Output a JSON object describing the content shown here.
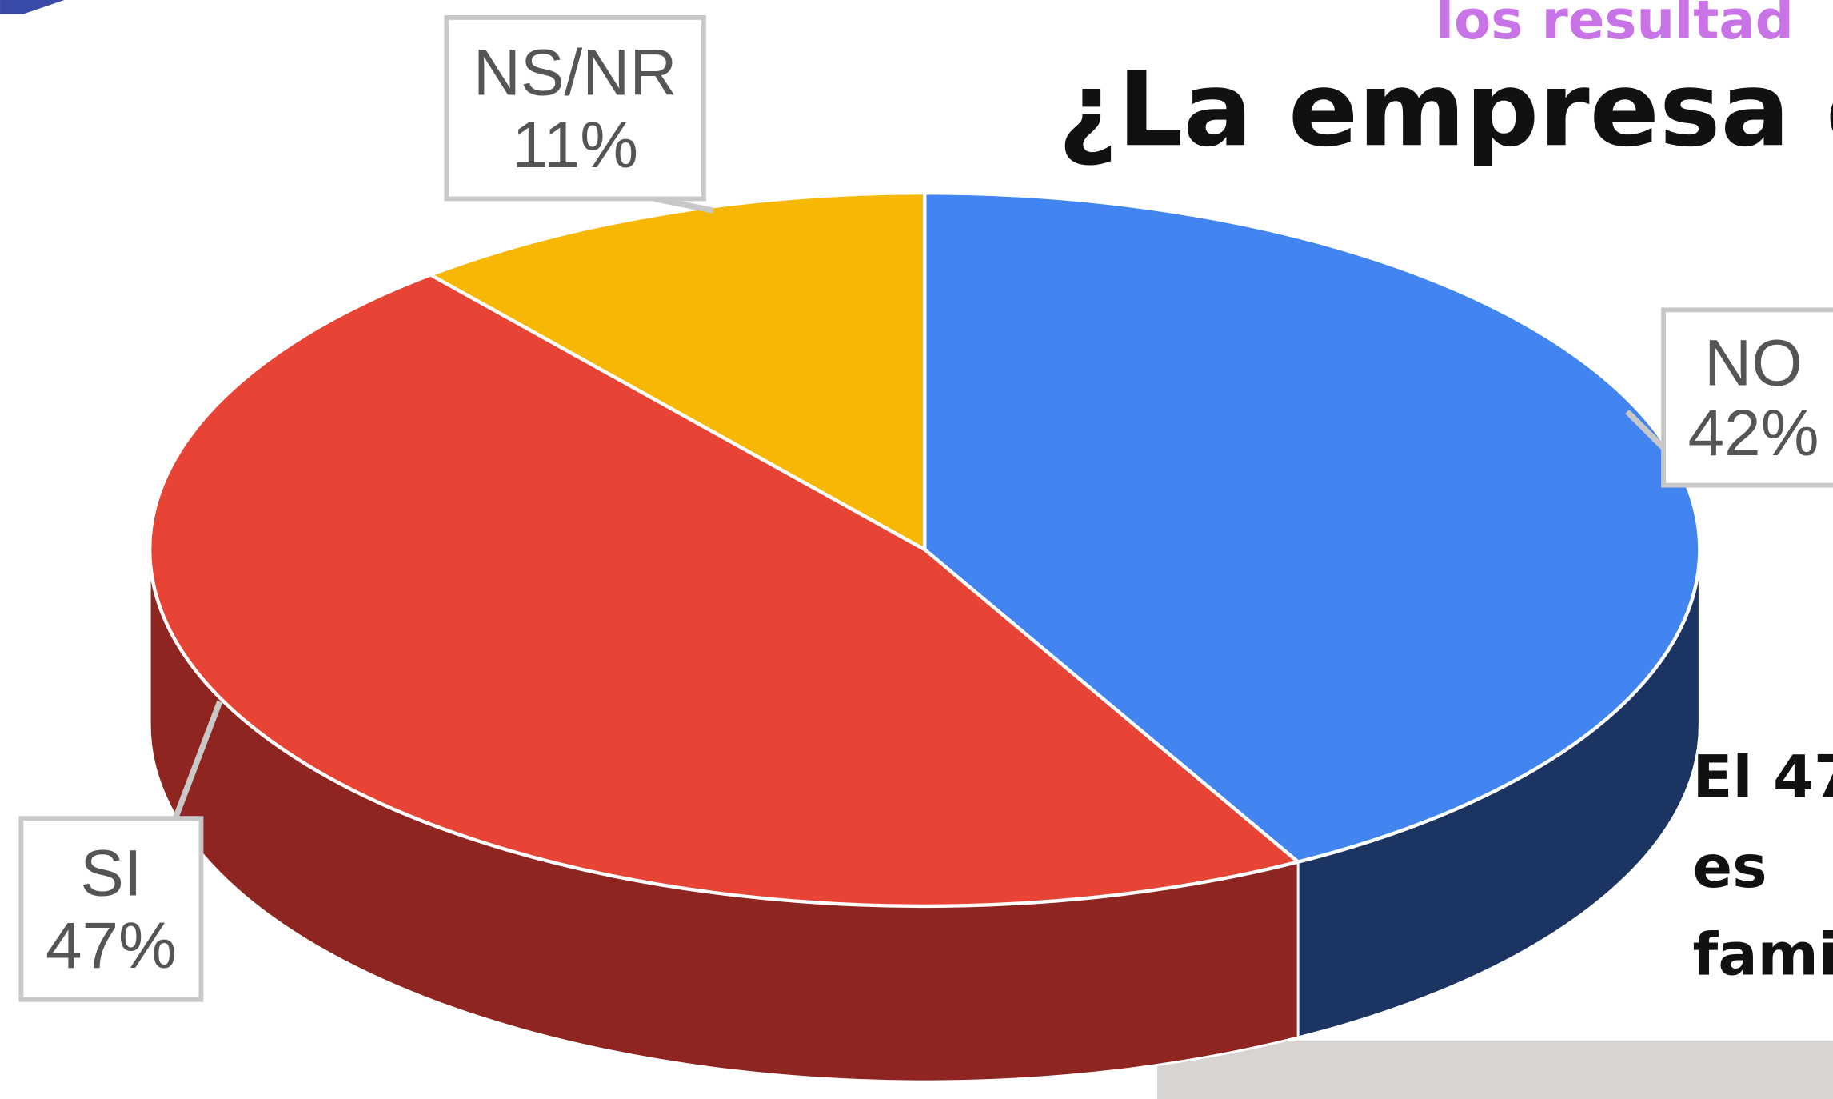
{
  "chart_data": {
    "type": "pie",
    "subtitle": "los resultad",
    "title": "¿La empresa es",
    "categories": [
      "NO",
      "SI",
      "NS/NR"
    ],
    "values": [
      42,
      47,
      11
    ],
    "value_labels": [
      "42%",
      "47%",
      "11%"
    ],
    "colors": [
      "#4285f0",
      "#e74435",
      "#f6b805"
    ],
    "side_colors": [
      "#1c3461",
      "#8e2520",
      "#8a6a05"
    ],
    "annotation": [
      "El 47",
      "es",
      "fami"
    ]
  }
}
